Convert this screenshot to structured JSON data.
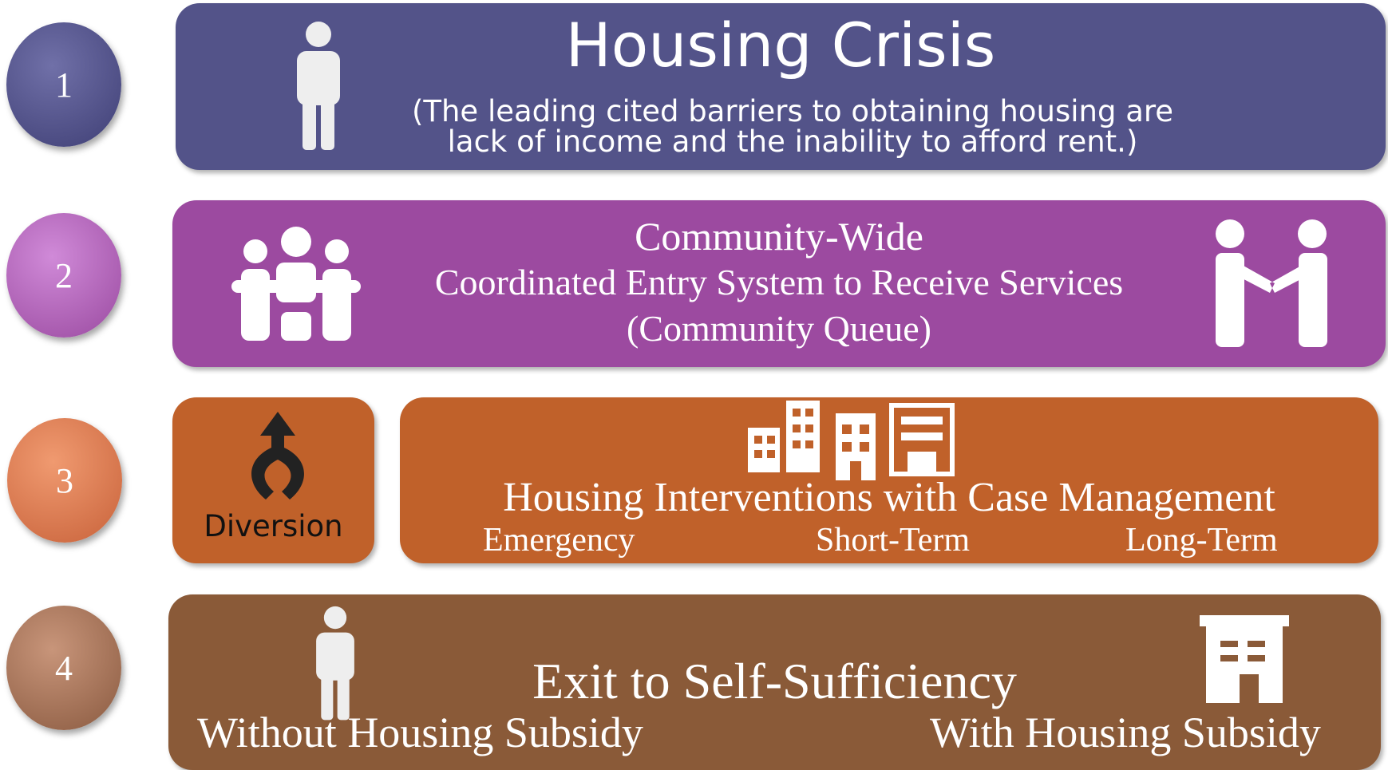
{
  "steps": [
    {
      "number": "1",
      "title": "Housing Crisis",
      "subtitle_lines": [
        "(The leading cited barriers to obtaining housing are",
        "lack of income and the inability to afford rent.)"
      ]
    },
    {
      "number": "2",
      "lines": [
        "Community-Wide",
        "Coordinated Entry System to Receive Services",
        "(Community Queue)"
      ]
    },
    {
      "number": "3",
      "side_label": "Diversion",
      "title": "Housing Interventions with Case Management",
      "options": [
        "Emergency",
        "Short-Term",
        "Long-Term"
      ]
    },
    {
      "number": "4",
      "title": "Exit to Self-Sufficiency",
      "left_label": "Without Housing Subsidy",
      "right_label": "With Housing Subsidy"
    }
  ]
}
